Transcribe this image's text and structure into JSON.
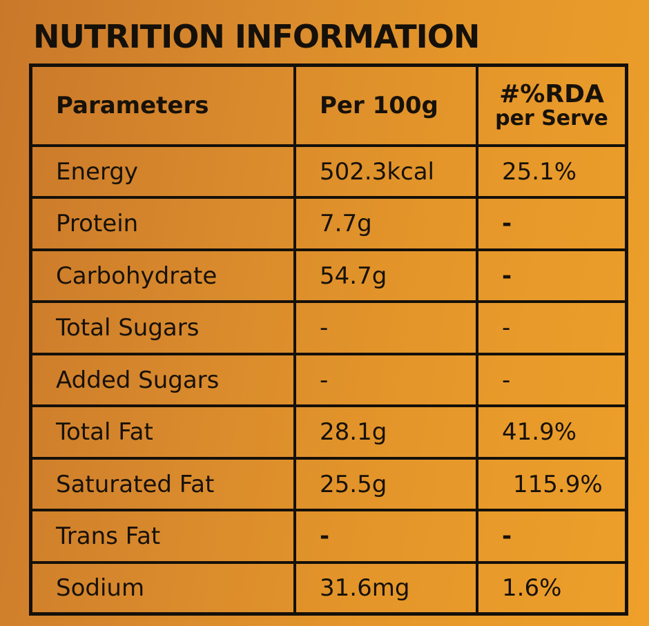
{
  "title": "NUTRITION INFORMATION",
  "header": {
    "parameters": "Parameters",
    "per100g": "Per 100g",
    "rda_line1": "#%RDA",
    "rda_line2": "per Serve"
  },
  "rows": [
    {
      "name": "Energy",
      "per100g": "502.3kcal",
      "rda": "25.1%"
    },
    {
      "name": "Protein",
      "per100g": "7.7g",
      "rda": "-"
    },
    {
      "name": "Carbohydrate",
      "per100g": "54.7g",
      "rda": "-"
    },
    {
      "name": "Total Sugars",
      "per100g": "-",
      "rda": "-"
    },
    {
      "name": "Added Sugars",
      "per100g": "-",
      "rda": "-"
    },
    {
      "name": "Total Fat",
      "per100g": "28.1g",
      "rda": "41.9%"
    },
    {
      "name": "Saturated Fat",
      "per100g": "25.5g",
      "rda": "115.9%"
    },
    {
      "name": "Trans Fat",
      "per100g": "-",
      "rda": "-"
    },
    {
      "name": "Sodium",
      "per100g": "31.6mg",
      "rda": "1.6%"
    }
  ]
}
